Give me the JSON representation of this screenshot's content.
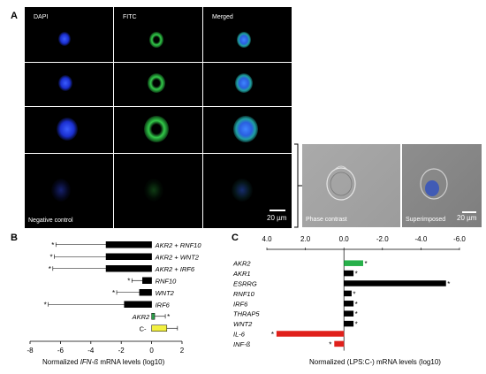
{
  "panelA": {
    "letter": "A",
    "columns": [
      "DAPI",
      "FITC",
      "Merged"
    ],
    "negative_label": "Negative control",
    "scale_label_1": "20 µm",
    "phase_label": "Phase contrast",
    "superimposed_label": "Superimposed",
    "scale_label_2": "20 µm"
  },
  "panelB": {
    "letter": "B",
    "xlabel_pre": "Normalized ",
    "xlabel_ital": "IFN-ß",
    "xlabel_post": " mRNA levels (log10)"
  },
  "panelC": {
    "letter": "C",
    "xlabel": "Normalized (LPS:C-) mRNA levels (log10)"
  },
  "chart_data": [
    {
      "type": "bar",
      "orientation": "horizontal",
      "categories": [
        "AKR2 + RNF10",
        "AKR2 + WNT2",
        "AKR2 + IRF6",
        "RNF10",
        "WNT2",
        "IRF6",
        "AKR2",
        "C-"
      ],
      "values": [
        -3.0,
        -3.0,
        -3.0,
        -0.6,
        -0.8,
        -1.8,
        0.2,
        1.0
      ],
      "error_low": [
        -6.3,
        -6.4,
        -6.5,
        -1.3,
        -2.3,
        -6.8,
        0.0,
        0.0
      ],
      "error_high": [
        0,
        0,
        0,
        0,
        0,
        0,
        0.9,
        1.7
      ],
      "significant": [
        true,
        true,
        true,
        true,
        true,
        true,
        true,
        false
      ],
      "colors": [
        "#000000",
        "#000000",
        "#000000",
        "#000000",
        "#000000",
        "#000000",
        "#2e9e4b",
        "#f2f040"
      ],
      "xlim": [
        -8,
        2
      ],
      "xticks": [
        "-8",
        "-6",
        "-4",
        "-2",
        "0",
        "2"
      ]
    },
    {
      "type": "bar",
      "orientation": "horizontal",
      "x_axis_reversed": true,
      "categories": [
        "AKR2",
        "AKR1",
        "ESRRG",
        "RNF10",
        "IRF6",
        "THRAP5",
        "WNT2",
        "IL-6",
        "INF-ß"
      ],
      "values": [
        -1.0,
        -0.5,
        -5.3,
        -0.4,
        -0.5,
        -0.5,
        -0.5,
        3.5,
        0.5
      ],
      "significant": [
        true,
        true,
        true,
        true,
        true,
        true,
        true,
        true,
        true
      ],
      "colors": [
        "#27b04a",
        "#000000",
        "#000000",
        "#000000",
        "#000000",
        "#000000",
        "#000000",
        "#e0201b",
        "#e0201b"
      ],
      "xlim": [
        4.0,
        -6.0
      ],
      "xticks": [
        "4.0",
        "2.0",
        "0.0",
        "-2.0",
        "-4.0",
        "-6.0"
      ]
    }
  ]
}
